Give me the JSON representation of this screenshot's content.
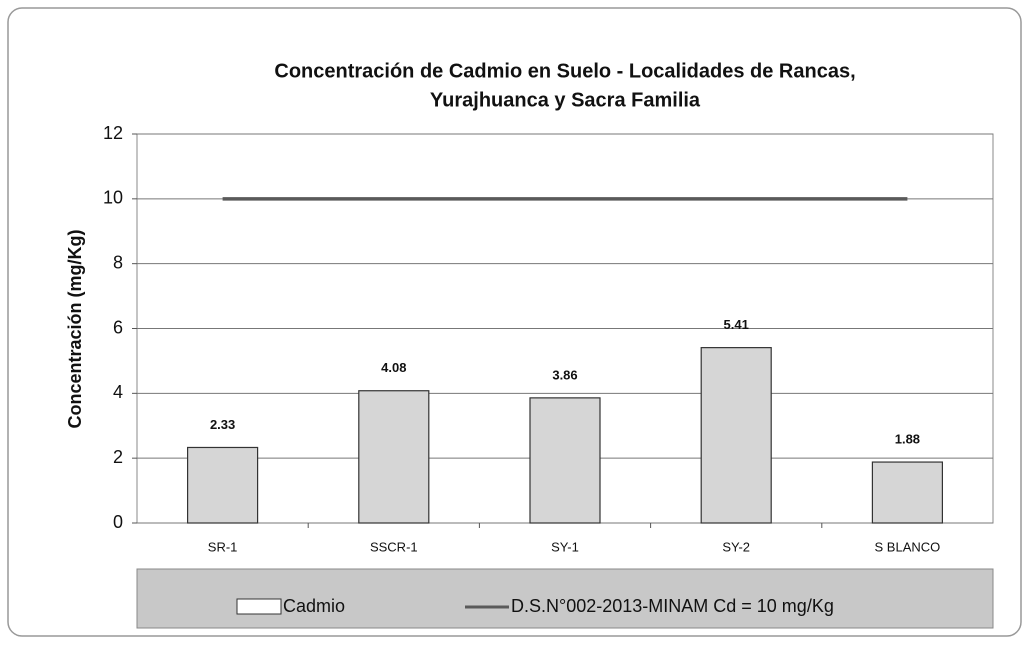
{
  "chart_data": {
    "type": "bar",
    "title": [
      "Concentración de Cadmio en Suelo  -  Localidades de Rancas,",
      "Yurajhuanca y Sacra Familia"
    ],
    "y_label": "Concentración (mg/Kg)",
    "categories": [
      "SR-1",
      "SSCR-1",
      "SY-1",
      "SY-2",
      "S BLANCO"
    ],
    "series": [
      {
        "name": "Cadmio",
        "type": "bar",
        "color": "#d6d6d6",
        "values": [
          2.33,
          4.08,
          3.86,
          5.41,
          1.88
        ]
      },
      {
        "name": "D.S.N°002-2013-MINAM Cd = 10 mg/Kg",
        "type": "line",
        "color": "#5a5a5a",
        "values": [
          10,
          10,
          10,
          10,
          10
        ]
      }
    ],
    "ylim": [
      0,
      12
    ],
    "yticks": [
      0,
      2,
      4,
      6,
      8,
      10,
      12
    ],
    "grid": true,
    "legend": "bottom"
  }
}
